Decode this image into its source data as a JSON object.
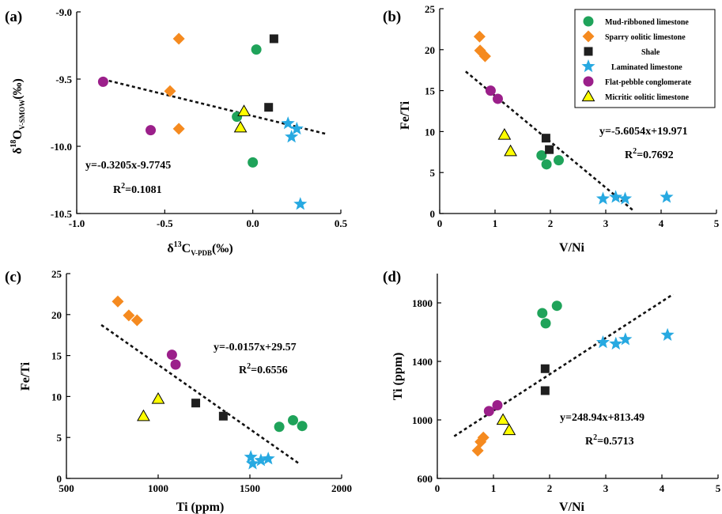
{
  "colors": {
    "mud": "#1fa35a",
    "sparry": "#f58a1f",
    "shale": "#1f1f1f",
    "laminated": "#27a9e1",
    "flat": "#9b1f8a",
    "micritic": "#ffff00"
  },
  "legend": [
    {
      "key": "mud",
      "label": "Mud-ribboned limestone",
      "marker": "circle"
    },
    {
      "key": "sparry",
      "label": "Sparry oolitic limestone",
      "marker": "diamond"
    },
    {
      "key": "shale",
      "label": "Shale",
      "marker": "square"
    },
    {
      "key": "laminated",
      "label": "Laminated limestone",
      "marker": "star"
    },
    {
      "key": "flat",
      "label": "Flat-pebble conglomerate",
      "marker": "circle"
    },
    {
      "key": "micritic",
      "label": "Micritic oolitic limestone",
      "marker": "triangle"
    }
  ],
  "chart_data": [
    {
      "id": "a",
      "panel_label": "(a)",
      "type": "scatter",
      "xlabel_main": "δ",
      "xlabel_sup": "13",
      "xlabel_core": "C",
      "xlabel_sub": "V-PDB",
      "xlabel_tail": "(‰)",
      "ylabel_main": "δ",
      "ylabel_sup": "18",
      "ylabel_core": "O",
      "ylabel_sub": "V-SMOW",
      "ylabel_tail": "(‰)",
      "xlim": [
        -1.0,
        0.5
      ],
      "ylim": [
        -10.5,
        -9.0
      ],
      "xticks": [
        -1.0,
        -0.5,
        0.0,
        0.5
      ],
      "xtick_labels": [
        "-1.0",
        "-0.5",
        "0.0",
        "0.5"
      ],
      "yticks": [
        -10.5,
        -10.0,
        -9.5,
        -9.0
      ],
      "ytick_labels": [
        "-10.5",
        "-10.0",
        "-9.5",
        "-9.0"
      ],
      "equation": "y=-0.3205x-9.7745",
      "r2_label": "R",
      "r2_sup": "2",
      "r2_value": "=0.1081",
      "trend": {
        "slope": -0.3205,
        "intercept": -9.7745,
        "x_range": [
          -0.85,
          0.42
        ]
      },
      "series": [
        {
          "key": "mud",
          "points": [
            [
              0.02,
              -9.28
            ],
            [
              -0.09,
              -9.78
            ],
            [
              0.0,
              -10.12
            ]
          ]
        },
        {
          "key": "sparry",
          "points": [
            [
              -0.42,
              -9.2
            ],
            [
              -0.47,
              -9.59
            ],
            [
              -0.42,
              -9.87
            ]
          ]
        },
        {
          "key": "shale",
          "points": [
            [
              0.12,
              -9.2
            ],
            [
              0.09,
              -9.71
            ]
          ]
        },
        {
          "key": "laminated",
          "points": [
            [
              0.2,
              -9.83
            ],
            [
              0.25,
              -9.87
            ],
            [
              0.22,
              -9.93
            ],
            [
              0.27,
              -10.43
            ]
          ]
        },
        {
          "key": "flat",
          "points": [
            [
              -0.85,
              -9.52
            ],
            [
              -0.58,
              -9.88
            ]
          ]
        },
        {
          "key": "micritic",
          "points": [
            [
              -0.05,
              -9.74
            ],
            [
              -0.07,
              -9.86
            ]
          ]
        }
      ]
    },
    {
      "id": "b",
      "panel_label": "(b)",
      "type": "scatter",
      "xlabel": "V/Ni",
      "ylabel": "Fe/Ti",
      "xlim": [
        0,
        5
      ],
      "ylim": [
        0,
        25
      ],
      "xticks": [
        0,
        1,
        2,
        3,
        4,
        5
      ],
      "xtick_labels": [
        "0",
        "1",
        "2",
        "3",
        "4",
        "5"
      ],
      "yticks": [
        0,
        5,
        10,
        15,
        20,
        25
      ],
      "ytick_labels": [
        "0",
        "5",
        "10",
        "15",
        "20",
        "25"
      ],
      "equation": "y=-5.6054x+19.971",
      "r2_label": "R",
      "r2_sup": "2",
      "r2_value": "=0.7692",
      "trend": {
        "slope": -5.6054,
        "intercept": 19.971,
        "x_range": [
          0.47,
          3.5
        ]
      },
      "series": [
        {
          "key": "mud",
          "points": [
            [
              1.84,
              7.1
            ],
            [
              1.93,
              6.0
            ],
            [
              2.15,
              6.5
            ]
          ]
        },
        {
          "key": "sparry",
          "points": [
            [
              0.72,
              21.6
            ],
            [
              0.73,
              19.9
            ],
            [
              0.82,
              19.2
            ]
          ]
        },
        {
          "key": "shale",
          "points": [
            [
              1.92,
              9.2
            ],
            [
              1.98,
              7.8
            ]
          ]
        },
        {
          "key": "laminated",
          "points": [
            [
              2.95,
              1.8
            ],
            [
              3.18,
              2.0
            ],
            [
              3.35,
              1.8
            ],
            [
              4.1,
              2.0
            ]
          ]
        },
        {
          "key": "flat",
          "points": [
            [
              0.92,
              15.0
            ],
            [
              1.05,
              14.0
            ]
          ]
        },
        {
          "key": "micritic",
          "points": [
            [
              1.17,
              9.6
            ],
            [
              1.28,
              7.6
            ]
          ]
        }
      ]
    },
    {
      "id": "c",
      "panel_label": "(c)",
      "type": "scatter",
      "xlabel": "Ti (ppm)",
      "ylabel": "Fe/Ti",
      "xlim": [
        500,
        2000
      ],
      "ylim": [
        0,
        25
      ],
      "xticks": [
        500,
        1000,
        1500,
        2000
      ],
      "xtick_labels": [
        "500",
        "1000",
        "1500",
        "2000"
      ],
      "yticks": [
        0,
        5,
        10,
        15,
        20,
        25
      ],
      "ytick_labels": [
        "0",
        "5",
        "10",
        "15",
        "20",
        "25"
      ],
      "equation": "y=-0.0157x+29.57",
      "r2_label": "R",
      "r2_sup": "2",
      "r2_value": "=0.6556",
      "trend": {
        "slope": -0.0157,
        "intercept": 29.57,
        "x_range": [
          690,
          1770
        ]
      },
      "series": [
        {
          "key": "mud",
          "points": [
            [
              1660,
              6.3
            ],
            [
              1735,
              7.1
            ],
            [
              1785,
              6.4
            ]
          ]
        },
        {
          "key": "sparry",
          "points": [
            [
              780,
              21.6
            ],
            [
              840,
              19.9
            ],
            [
              885,
              19.3
            ]
          ]
        },
        {
          "key": "shale",
          "points": [
            [
              1205,
              9.2
            ],
            [
              1355,
              7.6
            ]
          ]
        },
        {
          "key": "laminated",
          "points": [
            [
              1505,
              2.6
            ],
            [
              1515,
              1.8
            ],
            [
              1560,
              2.2
            ],
            [
              1600,
              2.4
            ]
          ]
        },
        {
          "key": "flat",
          "points": [
            [
              1075,
              15.1
            ],
            [
              1095,
              13.9
            ]
          ]
        },
        {
          "key": "micritic",
          "points": [
            [
              920,
              7.6
            ],
            [
              1000,
              9.7
            ]
          ]
        }
      ]
    },
    {
      "id": "d",
      "panel_label": "(d)",
      "type": "scatter",
      "xlabel": "V/Ni",
      "ylabel": "Ti (ppm)",
      "xlim": [
        0,
        5
      ],
      "ylim": [
        600,
        2000
      ],
      "xticks": [
        0,
        1,
        2,
        3,
        4,
        5
      ],
      "xtick_labels": [
        "0",
        "1",
        "2",
        "3",
        "4",
        "5"
      ],
      "yticks": [
        600,
        1000,
        1400,
        1800
      ],
      "ytick_labels": [
        "600",
        "1000",
        "1400",
        "1800"
      ],
      "equation": "y=248.94x+813.49",
      "r2_label": "R",
      "r2_sup": "2",
      "r2_value": "=0.5713",
      "trend": {
        "slope": 248.94,
        "intercept": 813.49,
        "x_range": [
          0.3,
          4.2
        ]
      },
      "series": [
        {
          "key": "mud",
          "points": [
            [
              1.87,
              1730
            ],
            [
              1.93,
              1660
            ],
            [
              2.13,
              1780
            ]
          ]
        },
        {
          "key": "sparry",
          "points": [
            [
              0.72,
              790
            ],
            [
              0.77,
              850
            ],
            [
              0.82,
              880
            ]
          ]
        },
        {
          "key": "shale",
          "points": [
            [
              1.92,
              1350
            ],
            [
              1.92,
              1200
            ]
          ]
        },
        {
          "key": "laminated",
          "points": [
            [
              2.95,
              1530
            ],
            [
              3.18,
              1520
            ],
            [
              3.35,
              1550
            ],
            [
              4.1,
              1580
            ]
          ]
        },
        {
          "key": "flat",
          "points": [
            [
              0.92,
              1060
            ],
            [
              1.07,
              1100
            ]
          ]
        },
        {
          "key": "micritic",
          "points": [
            [
              1.17,
              1000
            ],
            [
              1.28,
              930
            ]
          ]
        }
      ]
    }
  ]
}
